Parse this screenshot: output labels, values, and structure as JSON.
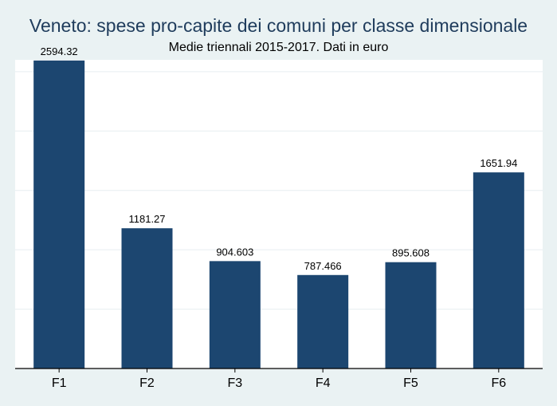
{
  "chart_data": {
    "type": "bar",
    "title": "Veneto: spese pro-capite dei comuni per classe dimensionale",
    "subtitle": "Medie triennali 2015-2017. Dati in euro",
    "categories": [
      "F1",
      "F2",
      "F3",
      "F4",
      "F5",
      "F6"
    ],
    "values": [
      2594.32,
      1181.27,
      904.603,
      787.466,
      895.608,
      1651.94
    ],
    "value_labels": [
      "2594.32",
      "1181.27",
      "904.603",
      "787.466",
      "895.608",
      "1651.94"
    ],
    "xlabel": "",
    "ylabel": "",
    "ylim": [
      0,
      2600
    ],
    "grid": true,
    "bar_color": "#1c4670",
    "background_color": "#eaf2f3",
    "plot_background_color": "#ffffff",
    "title_color": "#1f3c5c"
  }
}
